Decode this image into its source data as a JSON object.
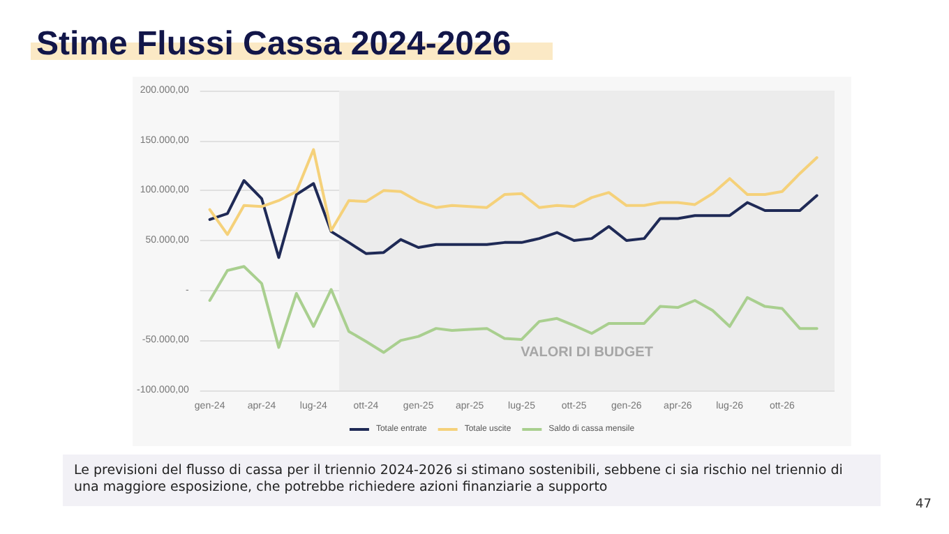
{
  "chart_data": {
    "type": "line",
    "title": "Stime Flussi Cassa 2024-2026",
    "x": [
      "2024-01",
      "2024-02",
      "2024-03",
      "2024-04",
      "2024-05",
      "2024-06",
      "2024-07",
      "2024-08",
      "2024-09",
      "2024-10",
      "2024-11",
      "2024-12",
      "2025-01",
      "2025-02",
      "2025-03",
      "2025-04",
      "2025-05",
      "2025-06",
      "2025-07",
      "2025-08",
      "2025-09",
      "2025-10",
      "2025-11",
      "2025-12",
      "2026-01",
      "2026-02",
      "2026-03",
      "2026-04",
      "2026-05",
      "2026-06",
      "2026-07",
      "2026-08",
      "2026-09",
      "2026-10",
      "2026-11",
      "2026-12"
    ],
    "series": [
      {
        "name": "Totale entrate",
        "color": "#1f2a56",
        "values": [
          71000,
          77000,
          110000,
          92000,
          33000,
          96000,
          107000,
          59000,
          48000,
          37000,
          38000,
          51000,
          43000,
          46000,
          46000,
          46000,
          46000,
          48000,
          48000,
          52000,
          58000,
          50000,
          52000,
          64000,
          50000,
          52000,
          72000,
          72000,
          75000,
          75000,
          75000,
          88000,
          80000,
          80000,
          80000,
          95000
        ]
      },
      {
        "name": "Totale uscite",
        "color": "#f5d17a",
        "values": [
          81000,
          56000,
          85000,
          84000,
          90000,
          99000,
          141000,
          60000,
          90000,
          89000,
          100000,
          99000,
          89000,
          83000,
          85000,
          84000,
          83000,
          96000,
          97000,
          83000,
          85000,
          84000,
          93000,
          98000,
          85000,
          85000,
          88000,
          88000,
          86000,
          97000,
          112000,
          96000,
          96000,
          99000,
          117000,
          133000
        ]
      },
      {
        "name": "Saldo di cassa mensile",
        "color": "#a9cf8f",
        "values": [
          -10000,
          20000,
          24000,
          7000,
          -57000,
          -3000,
          -36000,
          1000,
          -41000,
          -51000,
          -62000,
          -50000,
          -46000,
          -38000,
          -40000,
          -39000,
          -38000,
          -48000,
          -49000,
          -31000,
          -28000,
          -35000,
          -43000,
          -33000,
          -33000,
          -33000,
          -16000,
          -17000,
          -10000,
          -20000,
          -36000,
          -7000,
          -16000,
          -18000,
          -38000,
          -38000
        ]
      }
    ],
    "xlim": [
      "2023-12-15",
      "2027-01-01"
    ],
    "xticks": [
      {
        "value": "2024-01",
        "label": "gen-24"
      },
      {
        "value": "2024-04",
        "label": "apr-24"
      },
      {
        "value": "2024-07",
        "label": "lug-24"
      },
      {
        "value": "2024-10",
        "label": "ott-24"
      },
      {
        "value": "2025-01",
        "label": "gen-25"
      },
      {
        "value": "2025-04",
        "label": "apr-25"
      },
      {
        "value": "2025-07",
        "label": "lug-25"
      },
      {
        "value": "2025-10",
        "label": "ott-25"
      },
      {
        "value": "2026-01",
        "label": "gen-26"
      },
      {
        "value": "2026-04",
        "label": "apr-26"
      },
      {
        "value": "2026-07",
        "label": "lug-26"
      },
      {
        "value": "2026-10",
        "label": "ott-26"
      }
    ],
    "ylim": [
      -100000,
      200000
    ],
    "yticks": [
      {
        "value": -100000,
        "label": "-100.000,00"
      },
      {
        "value": -50000,
        "label": "-50.000,00"
      },
      {
        "value": 0,
        "label": "-"
      },
      {
        "value": 50000,
        "label": "50.000,00"
      },
      {
        "value": 100000,
        "label": "100.000,00"
      },
      {
        "value": 150000,
        "label": "150.000,00"
      },
      {
        "value": 200000,
        "label": "200.000,00"
      }
    ],
    "grid": "y",
    "legend": "bottom",
    "marker": "none",
    "line_style": "solid",
    "bands": [
      {
        "axis": "x",
        "from": "2024-08-15",
        "to": "2027-01-01",
        "label": "VALORI DI BUDGET",
        "color": "#ececec"
      }
    ],
    "annotations": [
      "Le previsioni del flusso di cassa per il triennio 2024-2026 si stimano sostenibili, sebbene ci sia rischio nel triennio di una maggiore esposizione, che potrebbe richiedere azioni finanziarie a supporto",
      "47"
    ]
  }
}
